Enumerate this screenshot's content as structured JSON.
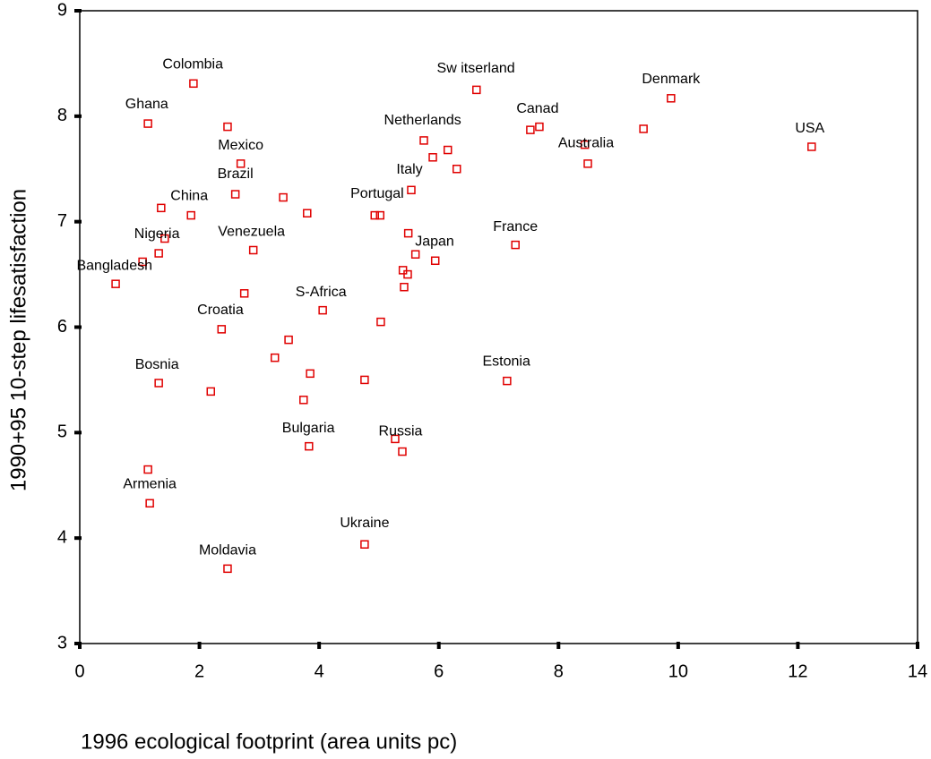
{
  "chart_data": {
    "type": "scatter",
    "x_label": "1996 ecological footprint (area units pc)",
    "y_label": "1990+95 10-step lifesatisfaction",
    "xlim": [
      0,
      14
    ],
    "ylim": [
      3,
      9
    ],
    "xticks": [
      0,
      2,
      4,
      6,
      8,
      10,
      12,
      14
    ],
    "yticks": [
      3,
      4,
      5,
      6,
      7,
      8,
      9
    ],
    "color": "#e00000",
    "x": [
      1.9,
      1.14,
      2.47,
      2.69,
      2.6,
      3.4,
      3.8,
      1.36,
      1.86,
      1.42,
      1.32,
      0.6,
      1.05,
      2.9,
      2.75,
      2.37,
      4.06,
      3.49,
      3.26,
      3.85,
      2.19,
      1.32,
      3.74,
      3.83,
      1.14,
      1.17,
      2.47,
      4.76,
      5.27,
      5.39,
      4.76,
      5.03,
      4.93,
      5.02,
      5.4,
      5.48,
      5.42,
      5.49,
      5.61,
      5.94,
      5.54,
      5.75,
      5.9,
      6.15,
      6.3,
      6.63,
      7.53,
      7.68,
      8.44,
      8.49,
      9.42,
      9.88,
      12.23,
      7.28,
      7.14
    ],
    "y": [
      8.31,
      7.93,
      7.9,
      7.55,
      7.26,
      7.23,
      7.08,
      7.13,
      7.06,
      6.84,
      6.7,
      6.41,
      6.62,
      6.73,
      6.32,
      5.98,
      6.16,
      5.88,
      5.71,
      5.56,
      5.39,
      5.47,
      5.31,
      4.87,
      4.65,
      4.33,
      3.71,
      3.94,
      4.94,
      4.82,
      5.5,
      6.05,
      7.06,
      7.06,
      6.54,
      6.5,
      6.38,
      6.89,
      6.69,
      6.63,
      7.3,
      7.77,
      7.61,
      7.68,
      7.5,
      8.25,
      7.87,
      7.9,
      7.73,
      7.55,
      7.88,
      8.17,
      7.71,
      6.78,
      5.49
    ],
    "annotations": [
      {
        "text": "Colombia",
        "x": 1.89,
        "y": 8.49
      },
      {
        "text": "Ghana",
        "x": 1.12,
        "y": 8.11
      },
      {
        "text": "Mexico",
        "x": 2.69,
        "y": 7.72
      },
      {
        "text": "Brazil",
        "x": 2.6,
        "y": 7.45
      },
      {
        "text": "China",
        "x": 1.83,
        "y": 7.24
      },
      {
        "text": "Nigeria",
        "x": 1.29,
        "y": 6.88
      },
      {
        "text": "Venezuela",
        "x": 2.87,
        "y": 6.9
      },
      {
        "text": "Bangladesh",
        "x": 0.58,
        "y": 6.58
      },
      {
        "text": "S-Africa",
        "x": 4.03,
        "y": 6.33
      },
      {
        "text": "Croatia",
        "x": 2.35,
        "y": 6.16
      },
      {
        "text": "Bosnia",
        "x": 1.29,
        "y": 5.64
      },
      {
        "text": "Bulgaria",
        "x": 3.82,
        "y": 5.04
      },
      {
        "text": "Armenia",
        "x": 1.17,
        "y": 4.51
      },
      {
        "text": "Moldavia",
        "x": 2.47,
        "y": 3.88
      },
      {
        "text": "Ukraine",
        "x": 4.76,
        "y": 4.14
      },
      {
        "text": "Russia",
        "x": 5.36,
        "y": 5.01
      },
      {
        "text": "Estonia",
        "x": 7.13,
        "y": 5.67
      },
      {
        "text": "France",
        "x": 7.28,
        "y": 6.95
      },
      {
        "text": "Japan",
        "x": 5.93,
        "y": 6.81
      },
      {
        "text": "Portugal",
        "x": 4.97,
        "y": 7.26
      },
      {
        "text": "Italy",
        "x": 5.51,
        "y": 7.49
      },
      {
        "text": "Netherlands",
        "x": 5.73,
        "y": 7.96
      },
      {
        "text": "Sw itserland",
        "x": 6.62,
        "y": 8.45
      },
      {
        "text": "Canad",
        "x": 7.65,
        "y": 8.07
      },
      {
        "text": "Australia",
        "x": 8.46,
        "y": 7.74
      },
      {
        "text": "Denmark",
        "x": 9.88,
        "y": 8.35
      },
      {
        "text": "USA",
        "x": 12.2,
        "y": 7.88
      }
    ]
  }
}
